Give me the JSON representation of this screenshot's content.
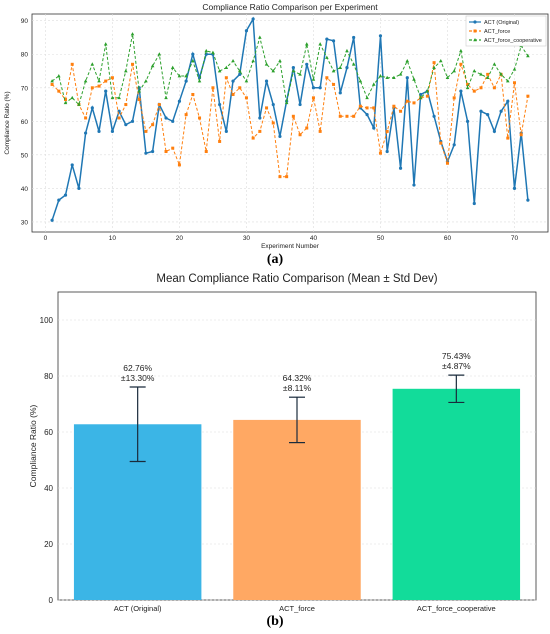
{
  "figure": {
    "caption_a": "(a)",
    "caption_b": "(b)"
  },
  "chart_data": [
    {
      "type": "line",
      "title": "Compliance Ratio Comparison per Experiment",
      "xlabel": "Experiment Number",
      "ylabel": "Compliance Ratio (%)",
      "xlim": [
        -2,
        75
      ],
      "ylim": [
        27,
        92
      ],
      "xticks": [
        0,
        10,
        20,
        30,
        40,
        50,
        60,
        70
      ],
      "yticks": [
        30,
        40,
        50,
        60,
        70,
        80,
        90
      ],
      "grid": true,
      "legend": "top-right",
      "series": [
        {
          "name": "ACT (Original)",
          "color": "#1f77b4",
          "marker": "circle",
          "linestyle": "solid",
          "x": [
            1,
            2,
            3,
            4,
            5,
            6,
            7,
            8,
            9,
            10,
            11,
            12,
            13,
            14,
            15,
            16,
            17,
            18,
            19,
            20,
            21,
            22,
            23,
            24,
            25,
            26,
            27,
            28,
            29,
            30,
            31,
            32,
            33,
            34,
            35,
            36,
            37,
            38,
            39,
            40,
            41,
            42,
            43,
            44,
            45,
            46,
            47,
            48,
            49,
            50,
            51,
            52,
            53,
            54,
            55,
            56,
            57,
            58,
            59,
            60,
            61,
            62,
            63,
            64,
            65,
            66,
            67,
            68,
            69,
            70,
            71,
            72
          ],
          "values": [
            30.5,
            36.5,
            38,
            47,
            40,
            56.5,
            64,
            57,
            69,
            57,
            63,
            59,
            60,
            70,
            50.5,
            51,
            65,
            61,
            60,
            66,
            72,
            80,
            73,
            80,
            80,
            65,
            57,
            72,
            74,
            87,
            90.5,
            61,
            72,
            65,
            55.5,
            66,
            76,
            65,
            77,
            70,
            70,
            84.5,
            84,
            68.5,
            76,
            85,
            64,
            62,
            58,
            85.5,
            51,
            64,
            46,
            73,
            41,
            68,
            69,
            61.5,
            54,
            48,
            53,
            69,
            60,
            35.5,
            63,
            62,
            57,
            63,
            66,
            40,
            56.5,
            36.5
          ]
        },
        {
          "name": "ACT_force",
          "color": "#ff7f0e",
          "marker": "square",
          "linestyle": "dashed",
          "x": [
            1,
            2,
            3,
            4,
            5,
            6,
            7,
            8,
            9,
            10,
            11,
            12,
            13,
            14,
            15,
            16,
            17,
            18,
            19,
            20,
            21,
            22,
            23,
            24,
            25,
            26,
            27,
            28,
            29,
            30,
            31,
            32,
            33,
            34,
            35,
            36,
            37,
            38,
            39,
            40,
            41,
            42,
            43,
            44,
            45,
            46,
            47,
            48,
            49,
            50,
            51,
            52,
            53,
            54,
            55,
            56,
            57,
            58,
            59,
            60,
            61,
            62,
            63,
            64,
            65,
            66,
            67,
            68,
            69,
            70,
            71,
            72
          ],
          "values": [
            71,
            69,
            66.5,
            77,
            65,
            61,
            70,
            70.5,
            72,
            73,
            61,
            65,
            77,
            66.5,
            57,
            59,
            65,
            51,
            52,
            47,
            62,
            68,
            61,
            51,
            70,
            54,
            73,
            68,
            70,
            67,
            55,
            57,
            64,
            59.5,
            43.5,
            43.5,
            61.5,
            56,
            58,
            67,
            57,
            73,
            71,
            61.5,
            61.5,
            61.5,
            64.5,
            64,
            64,
            50.5,
            57,
            64.5,
            63,
            66,
            65.5,
            67,
            67.5,
            77.5,
            53.5,
            47.5,
            67,
            77,
            71,
            69,
            70,
            74,
            70,
            74,
            55,
            71.5,
            56,
            67.5
          ]
        },
        {
          "name": "ACT_force_cooperative",
          "color": "#2ca02c",
          "marker": "triangle",
          "linestyle": "dashed",
          "x": [
            1,
            2,
            3,
            4,
            5,
            6,
            7,
            8,
            9,
            10,
            11,
            12,
            13,
            14,
            15,
            16,
            17,
            18,
            19,
            20,
            21,
            22,
            23,
            24,
            25,
            26,
            27,
            28,
            29,
            30,
            31,
            32,
            33,
            34,
            35,
            36,
            37,
            38,
            39,
            40,
            41,
            42,
            43,
            44,
            45,
            46,
            47,
            48,
            49,
            50,
            51,
            52,
            53,
            54,
            55,
            56,
            57,
            58,
            59,
            60,
            61,
            62,
            63,
            64,
            65,
            66,
            67,
            68,
            69,
            70,
            71,
            72
          ],
          "values": [
            72,
            73.5,
            65.5,
            67,
            65,
            72,
            77,
            72,
            83,
            67,
            67,
            75,
            86,
            69,
            72,
            76.5,
            80,
            67,
            76,
            73.5,
            73.5,
            78,
            72,
            81,
            80.5,
            75,
            76,
            78,
            75,
            72,
            78,
            85,
            77,
            75,
            78,
            65.5,
            75,
            74,
            83,
            72.5,
            83,
            79,
            75,
            76,
            81,
            77,
            72,
            67,
            71,
            73.5,
            73,
            73,
            74,
            78,
            72.5,
            67,
            69,
            76,
            78,
            73,
            75,
            81,
            70,
            75,
            74,
            73,
            77,
            74,
            72,
            75.5,
            82.5,
            79.5
          ]
        }
      ]
    },
    {
      "type": "bar",
      "title": "Mean Compliance Ratio Comparison (Mean ± Std Dev)",
      "xlabel": "",
      "ylabel": "Compliance Ratio (%)",
      "ylim": [
        0,
        110
      ],
      "yticks": [
        0,
        20,
        40,
        60,
        80,
        100
      ],
      "grid": true,
      "categories": [
        "ACT (Original)",
        "ACT_force",
        "ACT_force_cooperative"
      ],
      "values": [
        62.76,
        64.32,
        75.43
      ],
      "errors": [
        13.3,
        8.11,
        4.87
      ],
      "colors": [
        "#3bb5e6",
        "#ffa863",
        "#12dc9a"
      ],
      "data_labels": [
        {
          "line1": "62.76%",
          "line2": "±13.30%"
        },
        {
          "line1": "64.32%",
          "line2": "±8.11%"
        },
        {
          "line1": "75.43%",
          "line2": "±4.87%"
        }
      ]
    }
  ]
}
